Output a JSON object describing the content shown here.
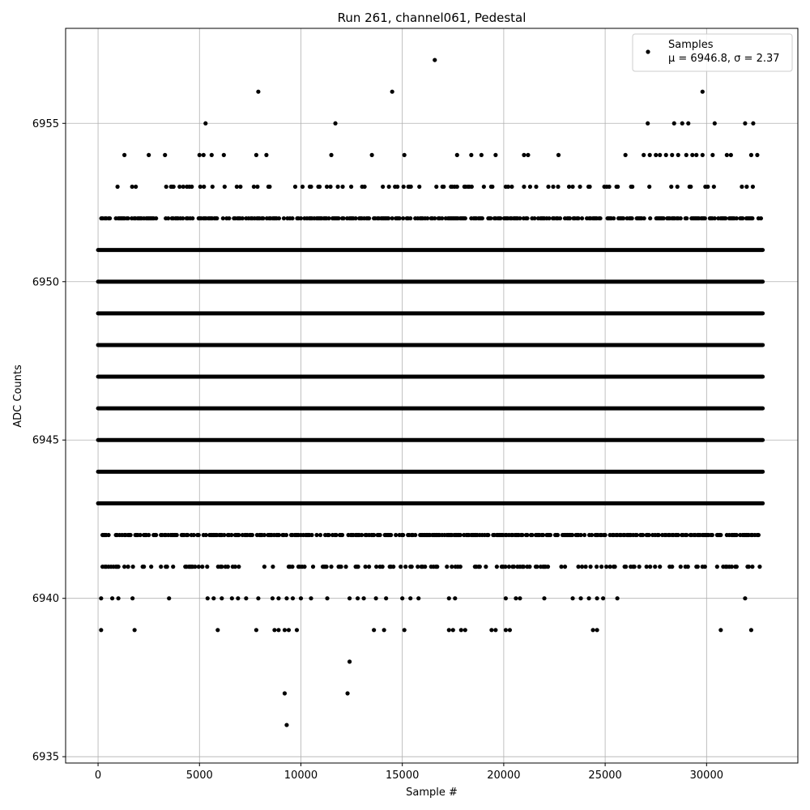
{
  "chart_data": {
    "type": "scatter",
    "title": "Run 261, channel061, Pedestal",
    "xlabel": "Sample #",
    "ylabel": "ADC Counts",
    "xlim": [
      -1600,
      34500
    ],
    "ylim": [
      6934.8,
      6958.0
    ],
    "xticks": [
      0,
      5000,
      10000,
      15000,
      20000,
      25000,
      30000
    ],
    "yticks": [
      6935,
      6940,
      6945,
      6950,
      6955
    ],
    "grid": true,
    "legend_position": "top-right",
    "legend": {
      "series_name": "Samples",
      "stats_label": "μ = 6946.8, σ = 2.37"
    },
    "marker_color": "#000000",
    "sample_count": 32768,
    "series": [
      {
        "name": "Samples",
        "bands": [
          {
            "y": 6943,
            "x_start": 0,
            "x_end": 32768
          },
          {
            "y": 6944,
            "x_start": 0,
            "x_end": 32768
          },
          {
            "y": 6945,
            "x_start": 0,
            "x_end": 32768
          },
          {
            "y": 6946,
            "x_start": 0,
            "x_end": 32768
          },
          {
            "y": 6947,
            "x_start": 0,
            "x_end": 32768
          },
          {
            "y": 6948,
            "x_start": 0,
            "x_end": 32768
          },
          {
            "y": 6949,
            "x_start": 0,
            "x_end": 32768
          },
          {
            "y": 6950,
            "x_start": 0,
            "x_end": 32768
          },
          {
            "y": 6951,
            "x_start": 0,
            "x_end": 32768
          },
          {
            "y": 6942,
            "x_start": 100,
            "x_end": 32768,
            "density": 0.55
          },
          {
            "y": 6952,
            "x_start": 100,
            "x_end": 32768,
            "density": 0.55
          },
          {
            "y": 6941,
            "x_start": 100,
            "x_end": 32768,
            "density": 0.3
          },
          {
            "y": 6953,
            "x_start": 900,
            "x_end": 32768,
            "density": 0.15
          }
        ],
        "points": [
          {
            "x": 150,
            "y": 6940
          },
          {
            "x": 700,
            "y": 6940
          },
          {
            "x": 1000,
            "y": 6940
          },
          {
            "x": 1700,
            "y": 6940
          },
          {
            "x": 3500,
            "y": 6940
          },
          {
            "x": 5400,
            "y": 6940
          },
          {
            "x": 5700,
            "y": 6940
          },
          {
            "x": 6100,
            "y": 6940
          },
          {
            "x": 6600,
            "y": 6940
          },
          {
            "x": 6900,
            "y": 6940
          },
          {
            "x": 7300,
            "y": 6940
          },
          {
            "x": 7900,
            "y": 6940
          },
          {
            "x": 8600,
            "y": 6940
          },
          {
            "x": 8900,
            "y": 6940
          },
          {
            "x": 9300,
            "y": 6940
          },
          {
            "x": 9600,
            "y": 6940
          },
          {
            "x": 10000,
            "y": 6940
          },
          {
            "x": 10500,
            "y": 6940
          },
          {
            "x": 11300,
            "y": 6940
          },
          {
            "x": 12400,
            "y": 6940
          },
          {
            "x": 12800,
            "y": 6940
          },
          {
            "x": 13100,
            "y": 6940
          },
          {
            "x": 13700,
            "y": 6940
          },
          {
            "x": 14200,
            "y": 6940
          },
          {
            "x": 15000,
            "y": 6940
          },
          {
            "x": 15400,
            "y": 6940
          },
          {
            "x": 15800,
            "y": 6940
          },
          {
            "x": 17300,
            "y": 6940
          },
          {
            "x": 17600,
            "y": 6940
          },
          {
            "x": 20100,
            "y": 6940
          },
          {
            "x": 20600,
            "y": 6940
          },
          {
            "x": 20800,
            "y": 6940
          },
          {
            "x": 22000,
            "y": 6940
          },
          {
            "x": 23400,
            "y": 6940
          },
          {
            "x": 23800,
            "y": 6940
          },
          {
            "x": 24200,
            "y": 6940
          },
          {
            "x": 24600,
            "y": 6940
          },
          {
            "x": 24900,
            "y": 6940
          },
          {
            "x": 25600,
            "y": 6940
          },
          {
            "x": 31900,
            "y": 6940
          },
          {
            "x": 150,
            "y": 6939
          },
          {
            "x": 1800,
            "y": 6939
          },
          {
            "x": 5900,
            "y": 6939
          },
          {
            "x": 7800,
            "y": 6939
          },
          {
            "x": 8700,
            "y": 6939
          },
          {
            "x": 8900,
            "y": 6939
          },
          {
            "x": 9200,
            "y": 6939
          },
          {
            "x": 9400,
            "y": 6939
          },
          {
            "x": 9800,
            "y": 6939
          },
          {
            "x": 13600,
            "y": 6939
          },
          {
            "x": 14100,
            "y": 6939
          },
          {
            "x": 15100,
            "y": 6939
          },
          {
            "x": 17300,
            "y": 6939
          },
          {
            "x": 17500,
            "y": 6939
          },
          {
            "x": 17900,
            "y": 6939
          },
          {
            "x": 18100,
            "y": 6939
          },
          {
            "x": 19400,
            "y": 6939
          },
          {
            "x": 19600,
            "y": 6939
          },
          {
            "x": 20100,
            "y": 6939
          },
          {
            "x": 20300,
            "y": 6939
          },
          {
            "x": 24400,
            "y": 6939
          },
          {
            "x": 24600,
            "y": 6939
          },
          {
            "x": 30700,
            "y": 6939
          },
          {
            "x": 32200,
            "y": 6939
          },
          {
            "x": 12400,
            "y": 6938
          },
          {
            "x": 9200,
            "y": 6937
          },
          {
            "x": 12300,
            "y": 6937
          },
          {
            "x": 9300,
            "y": 6936
          },
          {
            "x": 1300,
            "y": 6954
          },
          {
            "x": 2500,
            "y": 6954
          },
          {
            "x": 3300,
            "y": 6954
          },
          {
            "x": 5000,
            "y": 6954
          },
          {
            "x": 5200,
            "y": 6954
          },
          {
            "x": 5600,
            "y": 6954
          },
          {
            "x": 6200,
            "y": 6954
          },
          {
            "x": 7800,
            "y": 6954
          },
          {
            "x": 8300,
            "y": 6954
          },
          {
            "x": 11500,
            "y": 6954
          },
          {
            "x": 13500,
            "y": 6954
          },
          {
            "x": 15100,
            "y": 6954
          },
          {
            "x": 17700,
            "y": 6954
          },
          {
            "x": 18400,
            "y": 6954
          },
          {
            "x": 18900,
            "y": 6954
          },
          {
            "x": 19600,
            "y": 6954
          },
          {
            "x": 21000,
            "y": 6954
          },
          {
            "x": 21200,
            "y": 6954
          },
          {
            "x": 22700,
            "y": 6954
          },
          {
            "x": 26000,
            "y": 6954
          },
          {
            "x": 26900,
            "y": 6954
          },
          {
            "x": 27200,
            "y": 6954
          },
          {
            "x": 27500,
            "y": 6954
          },
          {
            "x": 27700,
            "y": 6954
          },
          {
            "x": 28000,
            "y": 6954
          },
          {
            "x": 28300,
            "y": 6954
          },
          {
            "x": 28600,
            "y": 6954
          },
          {
            "x": 29000,
            "y": 6954
          },
          {
            "x": 29300,
            "y": 6954
          },
          {
            "x": 29500,
            "y": 6954
          },
          {
            "x": 29800,
            "y": 6954
          },
          {
            "x": 30300,
            "y": 6954
          },
          {
            "x": 31000,
            "y": 6954
          },
          {
            "x": 31200,
            "y": 6954
          },
          {
            "x": 32200,
            "y": 6954
          },
          {
            "x": 32500,
            "y": 6954
          },
          {
            "x": 5300,
            "y": 6955
          },
          {
            "x": 11700,
            "y": 6955
          },
          {
            "x": 27100,
            "y": 6955
          },
          {
            "x": 28400,
            "y": 6955
          },
          {
            "x": 28800,
            "y": 6955
          },
          {
            "x": 29100,
            "y": 6955
          },
          {
            "x": 30400,
            "y": 6955
          },
          {
            "x": 31900,
            "y": 6955
          },
          {
            "x": 32300,
            "y": 6955
          },
          {
            "x": 7900,
            "y": 6956
          },
          {
            "x": 14500,
            "y": 6956
          },
          {
            "x": 29800,
            "y": 6956
          },
          {
            "x": 16600,
            "y": 6957
          }
        ]
      }
    ]
  }
}
